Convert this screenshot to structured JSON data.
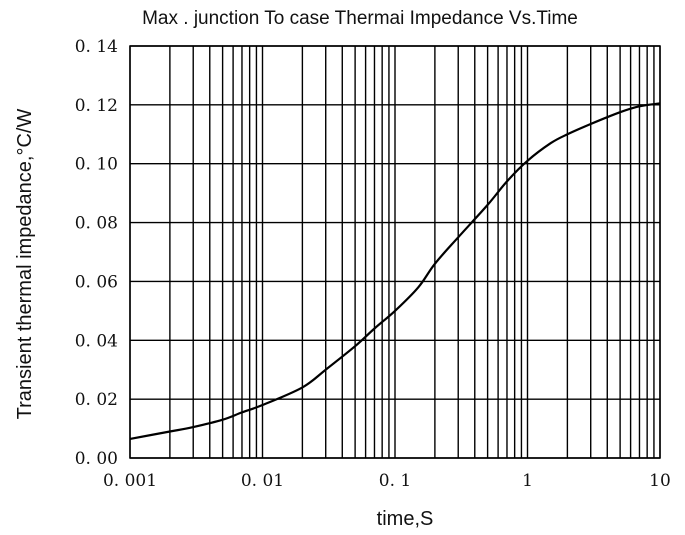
{
  "chart_data": {
    "type": "line",
    "title": "Max . junction To case Thermai Impedance Vs.Time",
    "xlabel": "time,S",
    "ylabel": "Transient thermal impedance,°C/W",
    "x_scale": "log",
    "xlim": [
      0.001,
      10
    ],
    "ylim": [
      0,
      0.14
    ],
    "grid": true,
    "legend": "none",
    "x_tick_labels": [
      "0. 001",
      "0. 01",
      "0. 1",
      "1",
      "10"
    ],
    "x_tick_values": [
      0.001,
      0.01,
      0.1,
      1,
      10
    ],
    "y_tick_labels": [
      "0. 00",
      "0. 02",
      "0. 04",
      "0. 06",
      "0. 08",
      "0. 10",
      "0. 12",
      "0. 14"
    ],
    "y_tick_values": [
      0,
      0.02,
      0.04,
      0.06,
      0.08,
      0.1,
      0.12,
      0.14
    ],
    "series": [
      {
        "x": [
          0.001,
          0.002,
          0.003,
          0.005,
          0.007,
          0.01,
          0.02,
          0.03,
          0.05,
          0.07,
          0.1,
          0.15,
          0.2,
          0.3,
          0.5,
          0.7,
          1,
          1.5,
          2,
          3,
          5,
          7,
          10
        ],
        "y": [
          0.0065,
          0.009,
          0.0105,
          0.013,
          0.0155,
          0.018,
          0.024,
          0.03,
          0.038,
          0.044,
          0.05,
          0.058,
          0.066,
          0.075,
          0.086,
          0.094,
          0.101,
          0.107,
          0.11,
          0.1135,
          0.1175,
          0.1195,
          0.1205
        ],
        "color": "#000000"
      }
    ]
  }
}
